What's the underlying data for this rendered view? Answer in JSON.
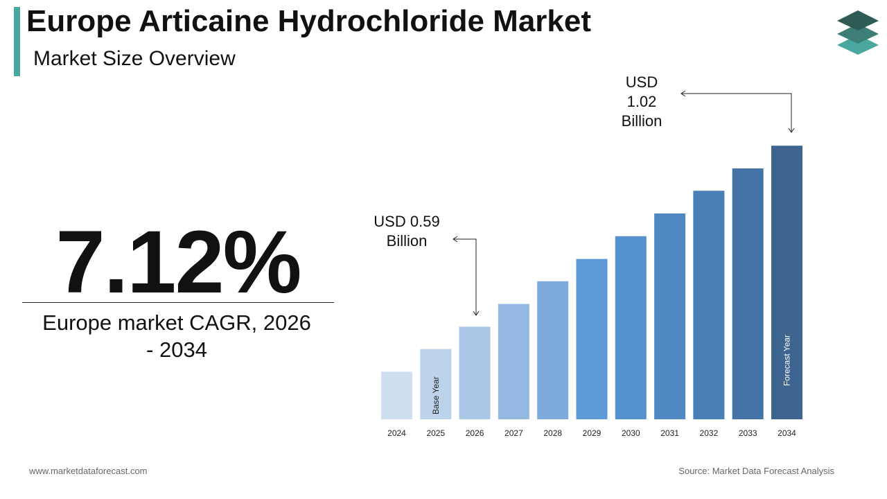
{
  "title": "Europe Articaine Hydrochloride Market",
  "subtitle": "Market Size Overview",
  "cagr": "7.12%",
  "cagr_label": "Europe market CAGR, 2026 - 2034",
  "footer_left": "www.marketdataforecast.com",
  "footer_right": "Source: Market Data Forecast Analysis",
  "chart_data": {
    "type": "bar",
    "categories": [
      "2024",
      "2025",
      "2026",
      "2027",
      "2028",
      "2029",
      "2030",
      "2031",
      "2032",
      "2033",
      "2034"
    ],
    "values": [
      0.483,
      0.537,
      0.59,
      0.644,
      0.698,
      0.751,
      0.805,
      0.859,
      0.913,
      0.966,
      1.02
    ],
    "value_labels": [
      null,
      null,
      "USD 0.59 Billion",
      null,
      null,
      null,
      null,
      null,
      null,
      null,
      "USD 1.02 Billion"
    ],
    "bar_notes": [
      null,
      "Base Year",
      null,
      null,
      null,
      null,
      null,
      null,
      null,
      null,
      "Forecast Year"
    ],
    "colors": [
      "#d0dff0",
      "#bdd3ec",
      "#aac6e6",
      "#95b8e0",
      "#7eaadc",
      "#5e9bd6",
      "#5591ce",
      "#5088c3",
      "#4a7fb7",
      "#4474a6",
      "#3e6590"
    ],
    "ylim": [
      0.37,
      1.05
    ]
  }
}
